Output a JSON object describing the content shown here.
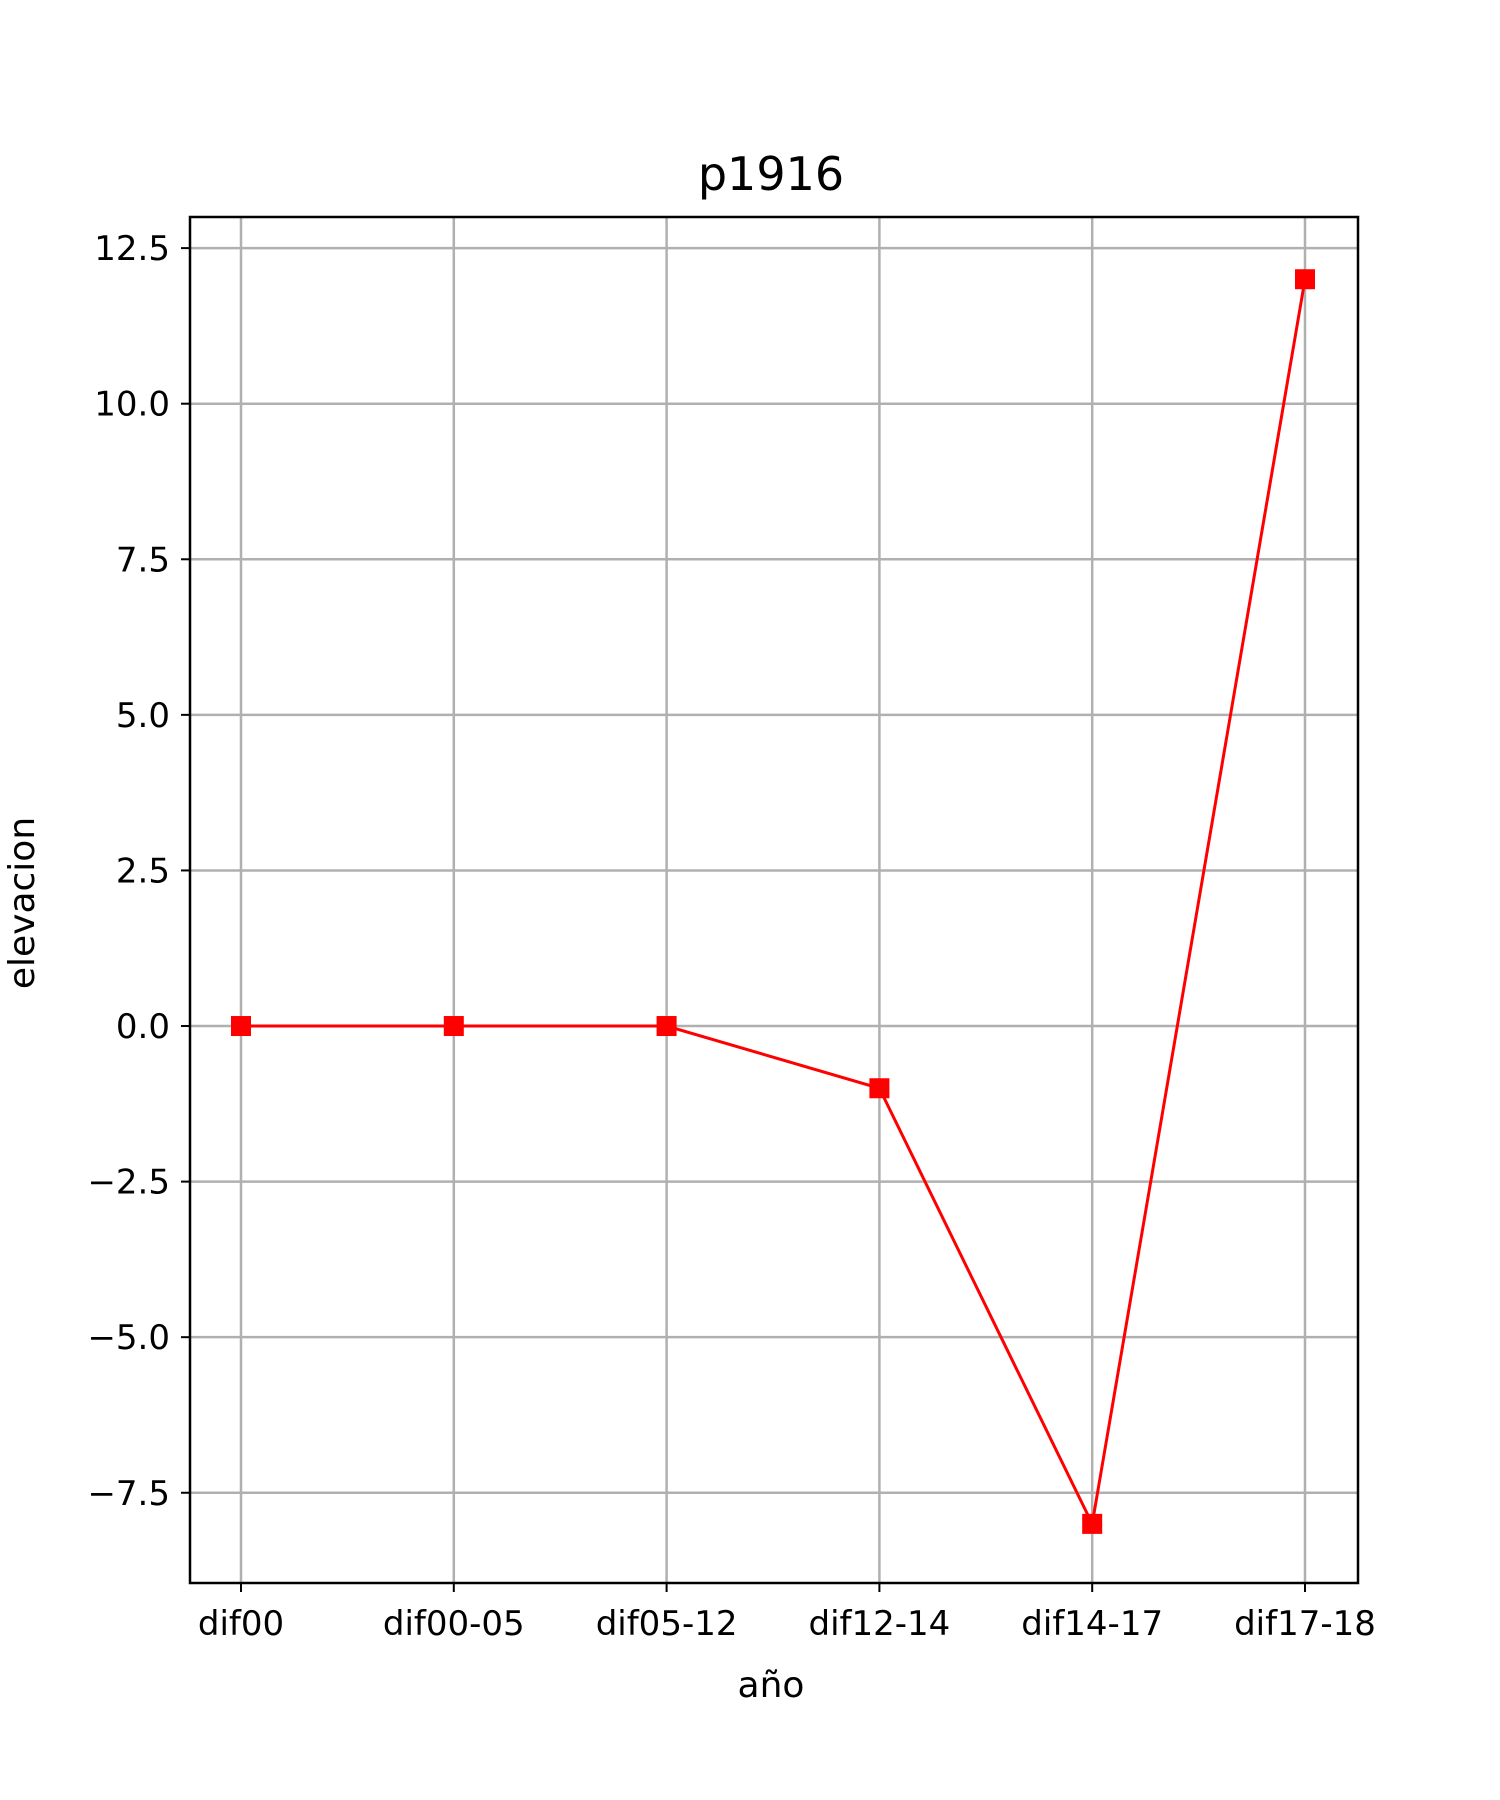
{
  "chart_data": {
    "type": "line",
    "title": "p1916",
    "xlabel": "año",
    "ylabel": "elevacion",
    "categories": [
      "dif00",
      "dif00-05",
      "dif05-12",
      "dif12-14",
      "dif14-17",
      "dif17-18"
    ],
    "series": [
      {
        "values": [
          0,
          0,
          0,
          -1,
          -8,
          12
        ],
        "color": "#ff0000",
        "marker": "square"
      }
    ],
    "ylim": [
      -8.95,
      13.0
    ],
    "yticks": [
      12.5,
      10.0,
      7.5,
      5.0,
      2.5,
      0.0,
      -2.5,
      -5.0,
      -7.5
    ],
    "ytick_labels": [
      "12.5",
      "10.0",
      "7.5",
      "5.0",
      "2.5",
      "0.0",
      "−2.5",
      "−5.0",
      "−7.5"
    ],
    "grid": true,
    "legend": "none"
  }
}
